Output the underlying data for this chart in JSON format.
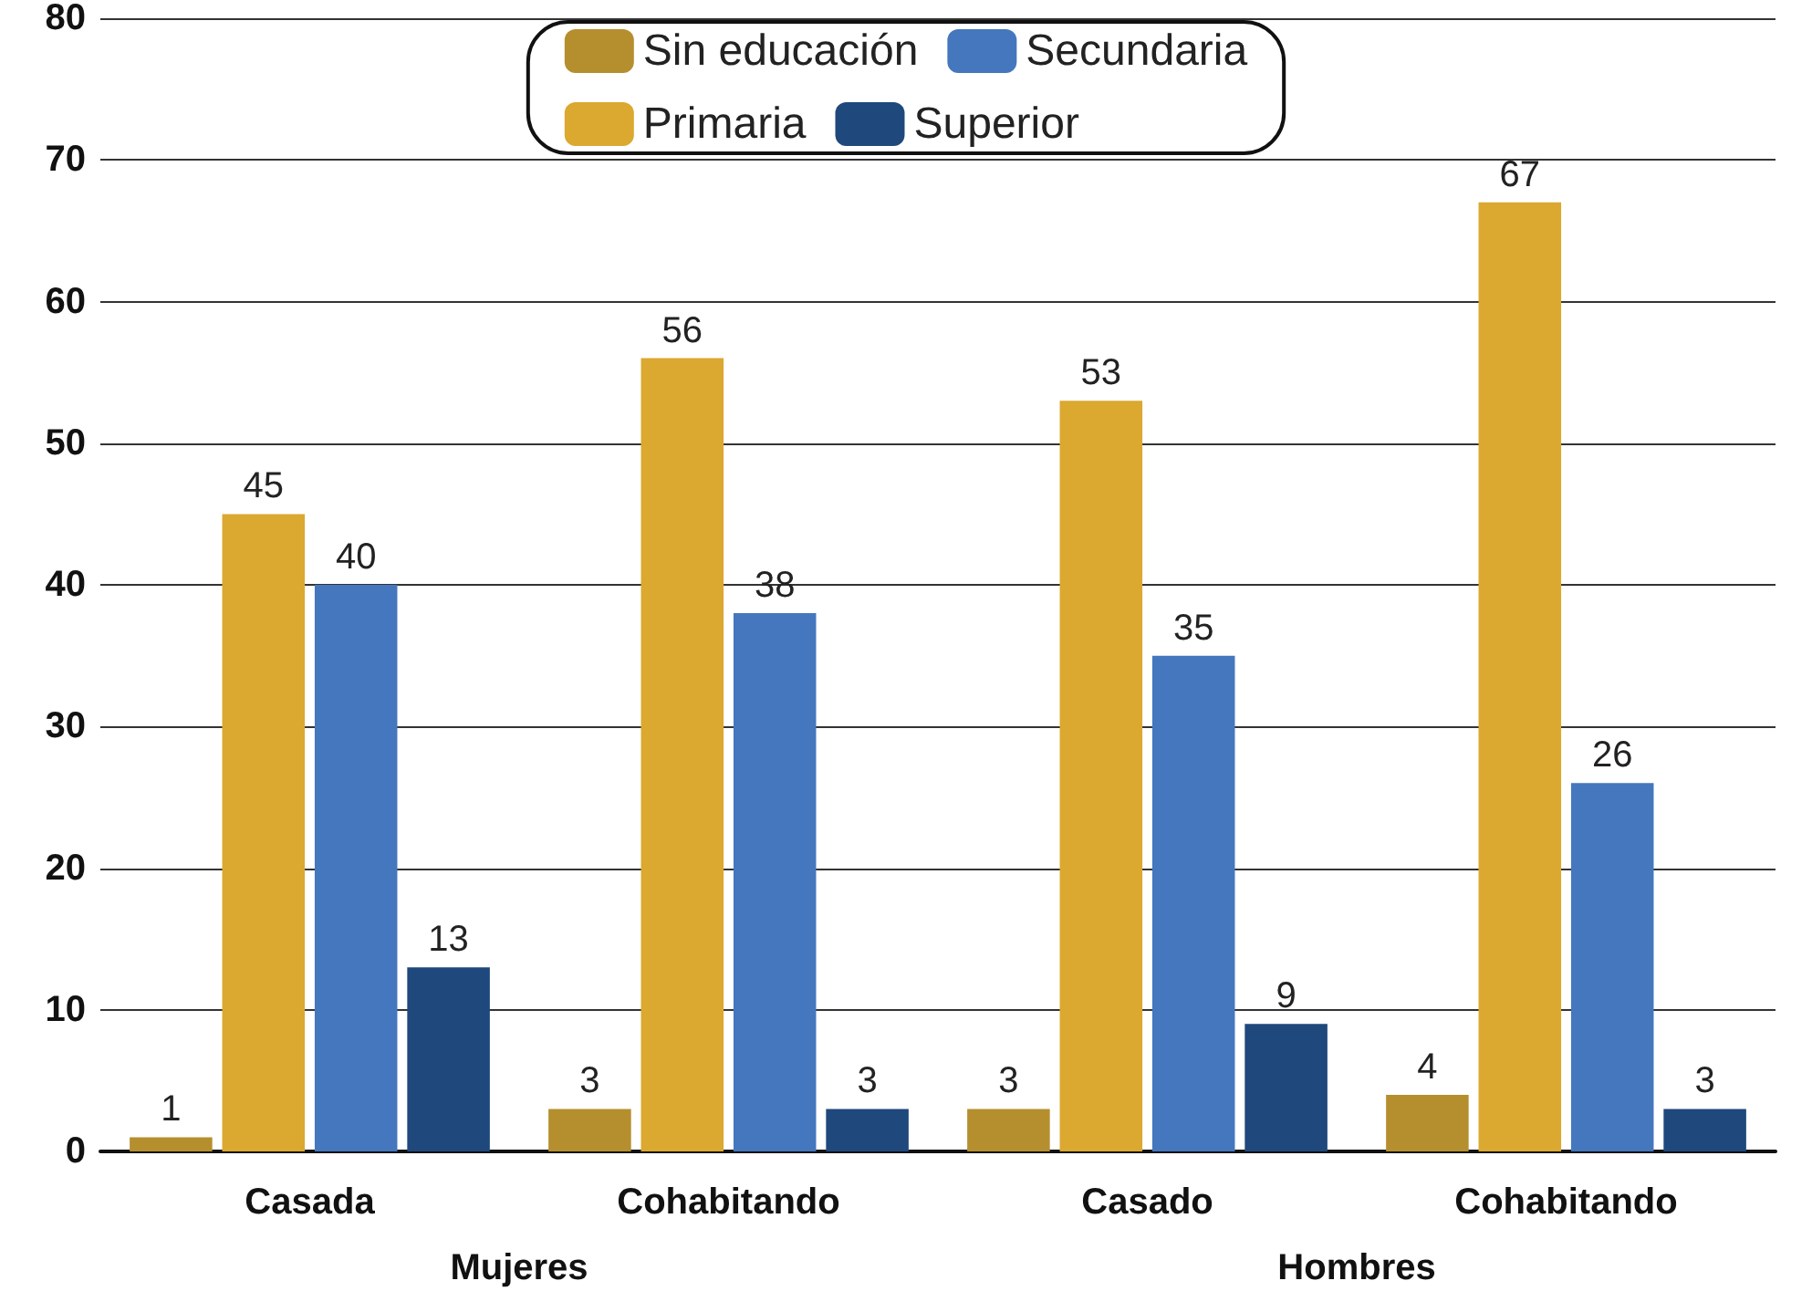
{
  "chart_data": {
    "type": "bar",
    "categories": [
      "Casada",
      "Cohabitando",
      "Casado",
      "Cohabitando"
    ],
    "series": [
      {
        "name": "Sin educación",
        "color": "#b58f2e",
        "values": [
          1,
          3,
          3,
          4
        ]
      },
      {
        "name": "Primaria",
        "color": "#dba830",
        "values": [
          45,
          56,
          53,
          67
        ]
      },
      {
        "name": "Secundaria",
        "color": "#4477be",
        "values": [
          40,
          38,
          35,
          26
        ]
      },
      {
        "name": "Superior",
        "color": "#1f487c",
        "values": [
          13,
          3,
          9,
          3
        ]
      }
    ],
    "ylim": [
      0,
      80
    ],
    "yticks": [
      0,
      10,
      20,
      30,
      40,
      50,
      60,
      70,
      80
    ],
    "grid": "y",
    "legend": "top",
    "data_labels": true,
    "annotations": [
      "Mujeres",
      "Hombres"
    ]
  }
}
